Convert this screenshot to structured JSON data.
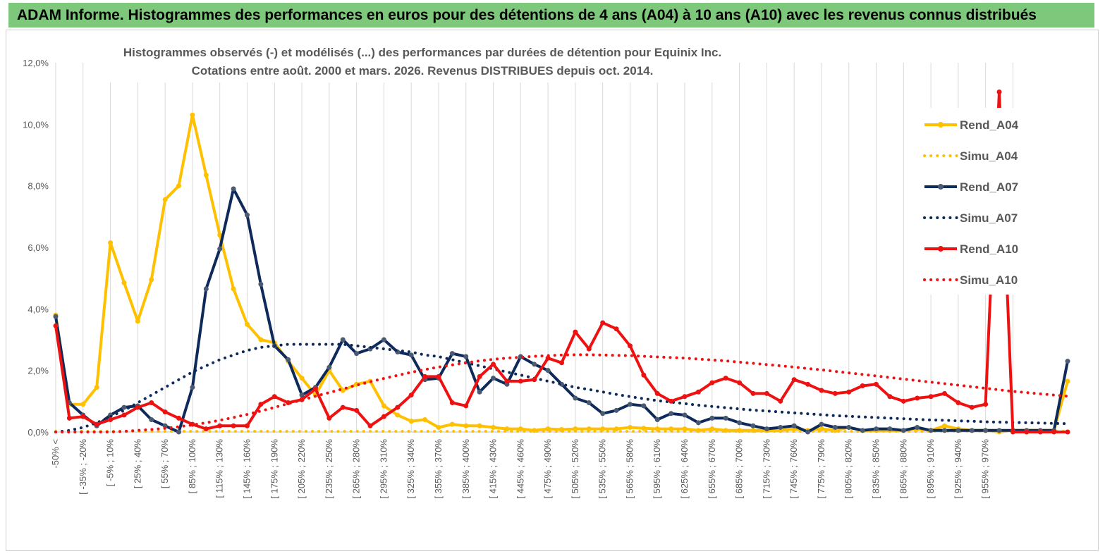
{
  "banner": {
    "title": "ADAM Informe. Histogrammes des performances en euros pour des détentions de 4 ans (A04) à 10 ans (A10) avec les revenus connus distribués"
  },
  "chart_data": {
    "type": "line",
    "title": "Histogrammes observés (-) et modélisés (...) des performances par durées de détention pour Equinix Inc.",
    "subtitle": "Cotations entre août. 2000 et mars. 2026. Revenus DISTRIBUES depuis oct. 2014.",
    "y_ticks": [
      "0,0%",
      "2,0%",
      "4,0%",
      "6,0%",
      "8,0%",
      "10,0%",
      "12,0%"
    ],
    "ylim": [
      0,
      12
    ],
    "grid": "vertical",
    "legend_position": "right",
    "x_tick_labels": [
      "-50% <",
      "[ -35% ; -20%",
      "[ -5% ; 10%",
      "[ 25% ; 40%",
      "[ 55% ; 70%",
      "[ 85% ; 100%",
      "[ 115% ; 130%",
      "[ 145% ; 160%",
      "[ 175% ; 190%",
      "[ 205% ; 220%",
      "[ 235% ; 250%",
      "[ 265% ; 280%",
      "[ 295% ; 310%",
      "[ 325% ; 340%",
      "[ 355% ; 370%",
      "[ 385% ; 400%",
      "[ 415% ; 430%",
      "[ 445% ; 460%",
      "[ 475% ; 490%",
      "[ 505% ; 520%",
      "[ 535% ; 550%",
      "[ 565% ; 580%",
      "[ 595% ; 610%",
      "[ 625% ; 640%",
      "[ 655% ; 670%",
      "[ 685% ; 700%",
      "[ 715% ; 730%",
      "[ 745% ; 760%",
      "[ 775% ; 790%",
      "[ 805% ; 820%",
      "[ 835% ; 850%",
      "[ 865% ; 880%",
      "[ 895% ; 910%",
      "[ 925% ; 940%",
      "[ 955% ; 970%"
    ],
    "series": [
      {
        "name": "Rend_A04",
        "style": "solid",
        "color": "#ffc000",
        "values": [
          3.8,
          0.9,
          0.9,
          1.45,
          6.15,
          4.85,
          3.6,
          4.95,
          7.55,
          8.0,
          10.3,
          8.35,
          6.4,
          4.65,
          3.5,
          3.0,
          2.9,
          2.3,
          1.75,
          1.2,
          2.0,
          1.35,
          1.55,
          1.65,
          0.85,
          0.55,
          0.35,
          0.4,
          0.15,
          0.25,
          0.2,
          0.2,
          0.15,
          0.1,
          0.1,
          0.05,
          0.1,
          0.08,
          0.1,
          0.1,
          0.1,
          0.1,
          0.15,
          0.12,
          0.1,
          0.1,
          0.1,
          0.05,
          0.1,
          0.05,
          0.05,
          0.05,
          0.05,
          0.05,
          0.1,
          0.05,
          0.1,
          0.05,
          0.15,
          0.05,
          0.05,
          0.05,
          0.05,
          0.1,
          0.05,
          0.2,
          0.1,
          0.05,
          0.05,
          0.0,
          0.05,
          0.05,
          0.05,
          0.05,
          1.65
        ]
      },
      {
        "name": "Simu_A04",
        "style": "dotted",
        "color": "#ffc000",
        "values": [
          0.02,
          0.02,
          0.02,
          0.02,
          0.02,
          0.02,
          0.02,
          0.02,
          0.02,
          0.02,
          0.02,
          0.02,
          0.02,
          0.02,
          0.02,
          0.02,
          0.02,
          0.02,
          0.02,
          0.02,
          0.02,
          0.02,
          0.02,
          0.02,
          0.02,
          0.02,
          0.02,
          0.02,
          0.02,
          0.02,
          0.02,
          0.02,
          0.02,
          0.02,
          0.02,
          0.02,
          0.02,
          0.02,
          0.02,
          0.02,
          0.02,
          0.02,
          0.02,
          0.02,
          0.02,
          0.02,
          0.02,
          0.02,
          0.02,
          0.02,
          0.02,
          0.02,
          0.02,
          0.02,
          0.02,
          0.02,
          0.02,
          0.02,
          0.02,
          0.02,
          0.02,
          0.02,
          0.02,
          0.02,
          0.02,
          0.02,
          0.02,
          0.02,
          0.02,
          0.02,
          0.02,
          0.02,
          0.02,
          0.02,
          0.02
        ]
      },
      {
        "name": "Rend_A07",
        "style": "solid",
        "color": "#0e2a5a",
        "values": [
          3.75,
          0.95,
          0.55,
          0.2,
          0.55,
          0.8,
          0.85,
          0.4,
          0.2,
          0.0,
          1.45,
          4.65,
          5.95,
          7.9,
          7.05,
          4.8,
          2.8,
          2.35,
          1.2,
          1.45,
          2.1,
          3.0,
          2.55,
          2.7,
          3.0,
          2.6,
          2.5,
          1.7,
          1.75,
          2.55,
          2.45,
          1.3,
          1.75,
          1.55,
          2.45,
          2.2,
          2.0,
          1.55,
          1.1,
          0.95,
          0.6,
          0.7,
          0.9,
          0.85,
          0.4,
          0.6,
          0.55,
          0.3,
          0.45,
          0.45,
          0.3,
          0.2,
          0.1,
          0.15,
          0.2,
          0.0,
          0.25,
          0.15,
          0.15,
          0.05,
          0.1,
          0.1,
          0.05,
          0.15,
          0.05,
          0.05,
          0.05,
          0.05,
          0.05,
          0.05,
          0.05,
          0.05,
          0.05,
          0.05,
          2.3
        ]
      },
      {
        "name": "Simu_A07",
        "style": "dotted",
        "color": "#0e2a5a",
        "values": [
          0.0,
          0.05,
          0.15,
          0.3,
          0.5,
          0.7,
          0.95,
          1.2,
          1.45,
          1.7,
          1.95,
          2.15,
          2.35,
          2.5,
          2.65,
          2.75,
          2.8,
          2.85,
          2.85,
          2.85,
          2.85,
          2.85,
          2.8,
          2.75,
          2.7,
          2.65,
          2.6,
          2.5,
          2.45,
          2.35,
          2.25,
          2.15,
          2.05,
          1.95,
          1.85,
          1.75,
          1.65,
          1.55,
          1.45,
          1.38,
          1.3,
          1.22,
          1.15,
          1.08,
          1.02,
          0.97,
          0.92,
          0.87,
          0.83,
          0.79,
          0.75,
          0.71,
          0.68,
          0.65,
          0.62,
          0.59,
          0.56,
          0.53,
          0.51,
          0.49,
          0.47,
          0.45,
          0.43,
          0.41,
          0.39,
          0.38,
          0.36,
          0.35,
          0.33,
          0.32,
          0.31,
          0.3,
          0.29,
          0.28,
          0.27
        ]
      },
      {
        "name": "Rend_A10",
        "style": "solid",
        "color": "#ee1111",
        "values": [
          3.45,
          0.45,
          0.5,
          0.25,
          0.4,
          0.55,
          0.8,
          0.95,
          0.65,
          0.45,
          0.25,
          0.1,
          0.2,
          0.2,
          0.2,
          0.9,
          1.15,
          0.95,
          1.05,
          1.4,
          0.45,
          0.8,
          0.7,
          0.2,
          0.5,
          0.8,
          1.2,
          1.8,
          1.8,
          0.95,
          0.85,
          1.8,
          2.2,
          1.65,
          1.65,
          1.7,
          2.4,
          2.25,
          3.25,
          2.7,
          3.55,
          3.35,
          2.8,
          1.85,
          1.25,
          1.0,
          1.15,
          1.3,
          1.6,
          1.75,
          1.6,
          1.25,
          1.25,
          1.0,
          1.7,
          1.55,
          1.35,
          1.25,
          1.3,
          1.5,
          1.55,
          1.15,
          1.0,
          1.1,
          1.15,
          1.25,
          0.95,
          0.8,
          0.9,
          11.05,
          0.0,
          0.0,
          0.0,
          0.0,
          0.0
        ]
      },
      {
        "name": "Simu_A10",
        "style": "dotted",
        "color": "#ee1111",
        "values": [
          0.0,
          0.0,
          0.0,
          0.0,
          0.0,
          0.02,
          0.05,
          0.08,
          0.12,
          0.17,
          0.23,
          0.3,
          0.38,
          0.47,
          0.57,
          0.68,
          0.8,
          0.92,
          1.04,
          1.16,
          1.28,
          1.4,
          1.52,
          1.63,
          1.74,
          1.84,
          1.94,
          2.03,
          2.11,
          2.18,
          2.25,
          2.31,
          2.36,
          2.4,
          2.43,
          2.46,
          2.48,
          2.5,
          2.51,
          2.51,
          2.5,
          2.49,
          2.48,
          2.46,
          2.44,
          2.42,
          2.4,
          2.37,
          2.34,
          2.31,
          2.27,
          2.23,
          2.19,
          2.15,
          2.11,
          2.06,
          2.02,
          1.97,
          1.92,
          1.87,
          1.82,
          1.77,
          1.72,
          1.67,
          1.62,
          1.57,
          1.52,
          1.47,
          1.42,
          1.37,
          1.32,
          1.28,
          1.24,
          1.2,
          1.16
        ]
      }
    ]
  }
}
